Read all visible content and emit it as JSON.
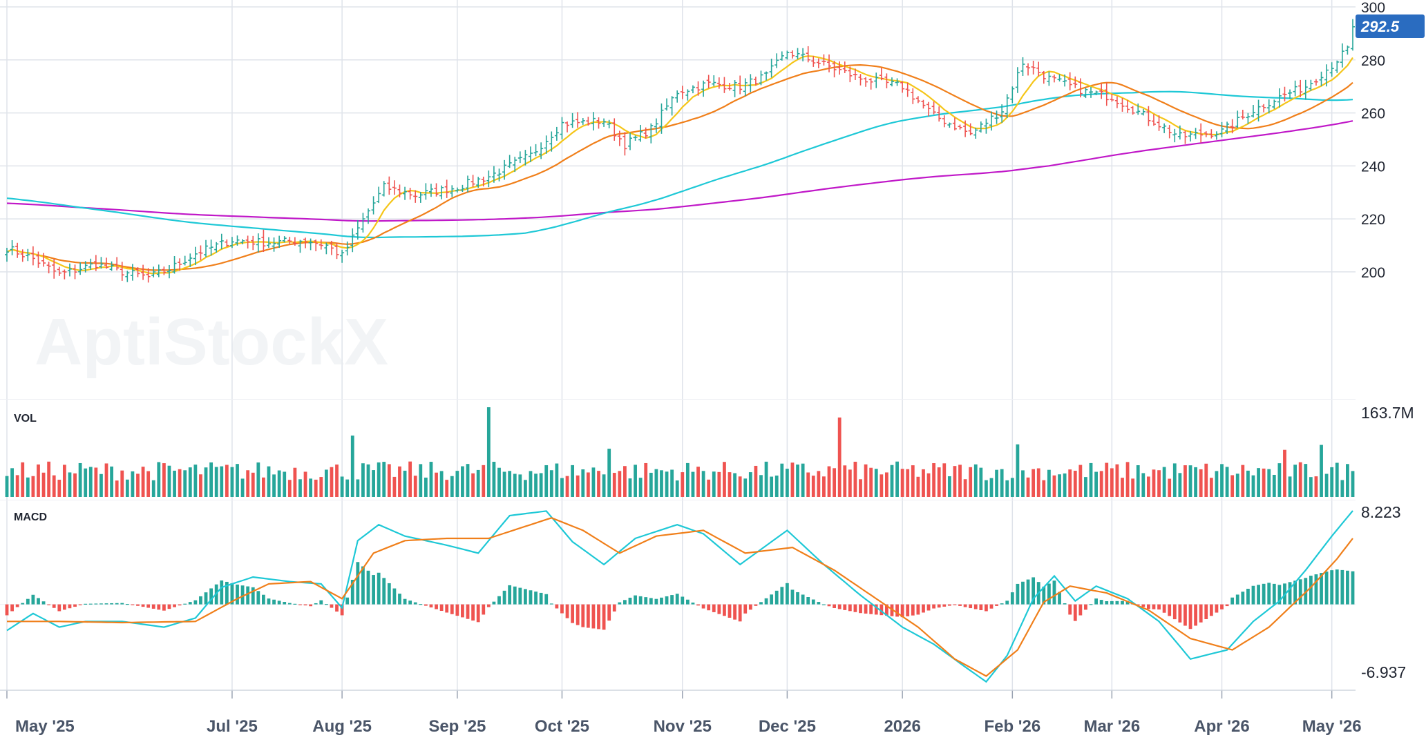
{
  "watermark": "AptiStockX",
  "colors": {
    "up": "#26a69a",
    "down": "#ef5350",
    "ma_fast": "#f5c518",
    "ma_mid": "#f07f1a",
    "ma_slow": "#1ec8d6",
    "ma_long": "#c018c8",
    "macd_line": "#1ec8d6",
    "signal_line": "#f07f1a",
    "grid": "#dfe3ea",
    "price_tag": "#2a6cc0"
  },
  "last_price_label": "292.5",
  "panels": {
    "volume": {
      "title": "VOL",
      "max_label": "163.7M"
    },
    "macd": {
      "title": "MACD",
      "max_label": "8.223",
      "min_label": "-6.937"
    }
  },
  "x_axis": {
    "months": [
      {
        "label": "May '25",
        "index": 0
      },
      {
        "label": "Jul '25",
        "index": 43
      },
      {
        "label": "Aug '25",
        "index": 64
      },
      {
        "label": "Sep '25",
        "index": 86
      },
      {
        "label": "Oct '25",
        "index": 106
      },
      {
        "label": "Nov '25",
        "index": 129
      },
      {
        "label": "Dec '25",
        "index": 149
      },
      {
        "label": "2026",
        "index": 171
      },
      {
        "label": "Feb '26",
        "index": 192
      },
      {
        "label": "Mar '26",
        "index": 211
      },
      {
        "label": "Apr '26",
        "index": 232
      },
      {
        "label": "May '26",
        "index": 253
      }
    ]
  },
  "chart_data": {
    "type": "candlestick",
    "y_axis": {
      "ticks": [
        200,
        220,
        240,
        260,
        280,
        300
      ],
      "ylim": [
        188,
        300
      ]
    },
    "price_anchors": [
      [
        0,
        209
      ],
      [
        5,
        205
      ],
      [
        10,
        199
      ],
      [
        17,
        203
      ],
      [
        22,
        200
      ],
      [
        27,
        198
      ],
      [
        31,
        201
      ],
      [
        36,
        207
      ],
      [
        43,
        212
      ],
      [
        50,
        211
      ],
      [
        57,
        212
      ],
      [
        61,
        210
      ],
      [
        64,
        206
      ],
      [
        69,
        223
      ],
      [
        72,
        232
      ],
      [
        78,
        229
      ],
      [
        86,
        232
      ],
      [
        92,
        236
      ],
      [
        100,
        244
      ],
      [
        106,
        256
      ],
      [
        114,
        257
      ],
      [
        118,
        248
      ],
      [
        123,
        254
      ],
      [
        128,
        268
      ],
      [
        134,
        271
      ],
      [
        140,
        270
      ],
      [
        145,
        274
      ],
      [
        149,
        283
      ],
      [
        155,
        279
      ],
      [
        163,
        273
      ],
      [
        171,
        270
      ],
      [
        177,
        259
      ],
      [
        184,
        252
      ],
      [
        190,
        261
      ],
      [
        194,
        279
      ],
      [
        199,
        273
      ],
      [
        206,
        268
      ],
      [
        211,
        266
      ],
      [
        218,
        258
      ],
      [
        224,
        251
      ],
      [
        232,
        253
      ],
      [
        238,
        261
      ],
      [
        243,
        266
      ],
      [
        248,
        270
      ],
      [
        253,
        278
      ],
      [
        256,
        284
      ],
      [
        257,
        292.5
      ]
    ],
    "volume_max_millions": 163.7,
    "volume_spikes": [
      {
        "index": 92,
        "value": 163.7
      },
      {
        "index": 159,
        "value": 145.0
      },
      {
        "index": 66,
        "value": 112.0
      },
      {
        "index": 193,
        "value": 96.0
      },
      {
        "index": 251,
        "value": 95.0
      },
      {
        "index": 115,
        "value": 88.0
      },
      {
        "index": 244,
        "value": 86.0
      }
    ],
    "macd_range": [
      -6.937,
      8.223
    ],
    "macd_anchors": [
      [
        0,
        -2.3
      ],
      [
        5,
        -0.8
      ],
      [
        10,
        -2.0
      ],
      [
        15,
        -1.5
      ],
      [
        22,
        -1.5
      ],
      [
        30,
        -2.0
      ],
      [
        36,
        -1.2
      ],
      [
        41,
        1.5
      ],
      [
        47,
        2.4
      ],
      [
        54,
        2.0
      ],
      [
        60,
        1.8
      ],
      [
        64,
        -0.3
      ],
      [
        67,
        5.6
      ],
      [
        71,
        7.0
      ],
      [
        76,
        6.0
      ],
      [
        84,
        5.2
      ],
      [
        90,
        4.5
      ],
      [
        96,
        7.8
      ],
      [
        103,
        8.2
      ],
      [
        108,
        5.5
      ],
      [
        114,
        3.5
      ],
      [
        120,
        5.8
      ],
      [
        128,
        7.0
      ],
      [
        133,
        6.2
      ],
      [
        140,
        3.5
      ],
      [
        149,
        6.5
      ],
      [
        156,
        3.5
      ],
      [
        163,
        0.8
      ],
      [
        171,
        -2.0
      ],
      [
        177,
        -3.5
      ],
      [
        183,
        -5.5
      ],
      [
        187,
        -6.8
      ],
      [
        191,
        -4.5
      ],
      [
        196,
        0.5
      ],
      [
        200,
        2.5
      ],
      [
        204,
        0.3
      ],
      [
        208,
        1.6
      ],
      [
        214,
        0.5
      ],
      [
        220,
        -1.5
      ],
      [
        226,
        -4.8
      ],
      [
        233,
        -4.0
      ],
      [
        238,
        -1.5
      ],
      [
        243,
        0.3
      ],
      [
        248,
        3.0
      ],
      [
        253,
        6.0
      ],
      [
        257,
        8.223
      ]
    ],
    "signal_anchors": [
      [
        0,
        -1.5
      ],
      [
        10,
        -1.5
      ],
      [
        22,
        -1.6
      ],
      [
        36,
        -1.5
      ],
      [
        44,
        0.5
      ],
      [
        50,
        1.8
      ],
      [
        58,
        2.0
      ],
      [
        64,
        0.5
      ],
      [
        70,
        4.5
      ],
      [
        76,
        5.6
      ],
      [
        84,
        5.8
      ],
      [
        92,
        5.8
      ],
      [
        104,
        7.6
      ],
      [
        110,
        6.5
      ],
      [
        117,
        4.5
      ],
      [
        124,
        6.0
      ],
      [
        133,
        6.5
      ],
      [
        141,
        4.5
      ],
      [
        150,
        5.0
      ],
      [
        158,
        3.0
      ],
      [
        166,
        0.5
      ],
      [
        174,
        -2.0
      ],
      [
        181,
        -4.8
      ],
      [
        187,
        -6.3
      ],
      [
        193,
        -4.0
      ],
      [
        198,
        0.2
      ],
      [
        203,
        1.6
      ],
      [
        210,
        1.0
      ],
      [
        218,
        -0.5
      ],
      [
        226,
        -3.0
      ],
      [
        234,
        -4.0
      ],
      [
        241,
        -2.0
      ],
      [
        249,
        1.5
      ],
      [
        254,
        4.0
      ],
      [
        257,
        5.8
      ]
    ]
  }
}
